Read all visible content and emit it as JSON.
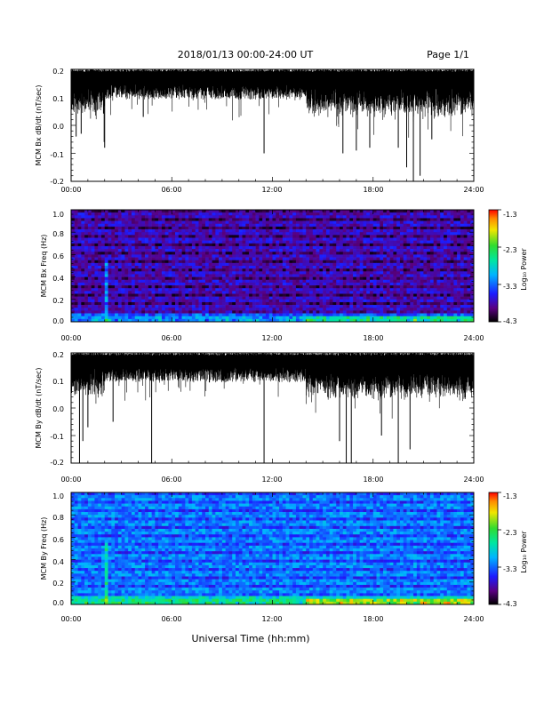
{
  "header": {
    "title": "2018/01/13  00:00-24:00 UT",
    "page": "Page 1/1"
  },
  "footer": {
    "xlabel": "Universal Time (hh:mm)"
  },
  "colorbar": {
    "title": "Log₁₀ Power",
    "tick_labels": [
      "-1.3",
      "-2.3",
      "-3.3",
      "-4.3"
    ],
    "range": [
      -4.3,
      -1.3
    ]
  },
  "chart_data": [
    {
      "type": "line",
      "ylabel": "MCM Bx dB/dt (nT/sec)",
      "x_tick_labels": [
        "00:00",
        "06:00",
        "12:00",
        "18:00",
        "24:00"
      ],
      "y_tick_labels": [
        "0.2",
        "0.1",
        "0.0",
        "-0.1",
        "-0.2"
      ],
      "xlim_hours": [
        0,
        24
      ],
      "ylim": [
        -0.2,
        0.2
      ],
      "series_note": "dense black time series, upper envelope ~0.2, typical troughs 0.1-0.15",
      "spikes": [
        {
          "x": 0.3,
          "y": -0.04
        },
        {
          "x": 0.6,
          "y": -0.03
        },
        {
          "x": 2.0,
          "y": -0.08
        },
        {
          "x": 4.3,
          "y": 0.03
        },
        {
          "x": 11.5,
          "y": -0.1
        },
        {
          "x": 16.2,
          "y": -0.1
        },
        {
          "x": 17.0,
          "y": -0.09
        },
        {
          "x": 17.8,
          "y": -0.08
        },
        {
          "x": 19.5,
          "y": -0.08
        },
        {
          "x": 20.0,
          "y": -0.15
        },
        {
          "x": 20.4,
          "y": -0.2
        },
        {
          "x": 20.8,
          "y": -0.18
        },
        {
          "x": 21.5,
          "y": -0.05
        }
      ]
    },
    {
      "type": "heatmap",
      "ylabel": "MCM Bx Freq (Hz)",
      "x_tick_labels": [
        "00:00",
        "06:00",
        "12:00",
        "18:00",
        "24:00"
      ],
      "y_tick_labels": [
        "1.0",
        "0.8",
        "0.6",
        "0.4",
        "0.2",
        "0.0"
      ],
      "xlim_hours": [
        0,
        24
      ],
      "ylim": [
        0,
        1.0
      ],
      "colorbar_range": [
        -4.3,
        -1.3
      ],
      "description": "background near -3.8 (blue), horizontal bands, stronger power below 0.1 Hz, higher late-day"
    },
    {
      "type": "line",
      "ylabel": "MCM By dB/dt (nT/sec)",
      "x_tick_labels": [
        "00:00",
        "06:00",
        "12:00",
        "18:00",
        "24:00"
      ],
      "y_tick_labels": [
        "0.2",
        "0.1",
        "0.0",
        "-0.1",
        "-0.2"
      ],
      "xlim_hours": [
        0,
        24
      ],
      "ylim": [
        -0.2,
        0.2
      ],
      "series_note": "dense black time series, upper envelope ~0.2, typical troughs 0.1-0.15",
      "spikes": [
        {
          "x": 0.5,
          "y": -0.2
        },
        {
          "x": 0.7,
          "y": -0.12
        },
        {
          "x": 1.0,
          "y": -0.07
        },
        {
          "x": 2.5,
          "y": -0.05
        },
        {
          "x": 4.8,
          "y": -0.2
        },
        {
          "x": 11.5,
          "y": -0.2
        },
        {
          "x": 16.0,
          "y": -0.12
        },
        {
          "x": 16.4,
          "y": -0.2
        },
        {
          "x": 16.7,
          "y": -0.2
        },
        {
          "x": 18.5,
          "y": -0.1
        },
        {
          "x": 19.5,
          "y": -0.2
        },
        {
          "x": 20.2,
          "y": -0.15
        }
      ]
    },
    {
      "type": "heatmap",
      "ylabel": "MCM By Freq (Hz)",
      "x_tick_labels": [
        "00:00",
        "06:00",
        "12:00",
        "18:00",
        "24:00"
      ],
      "y_tick_labels": [
        "1.0",
        "0.8",
        "0.6",
        "0.4",
        "0.2",
        "0.0"
      ],
      "xlim_hours": [
        0,
        24
      ],
      "ylim": [
        0,
        1.0
      ],
      "colorbar_range": [
        -4.3,
        -1.3
      ],
      "description": "background near -3.2 (cyan), horizontal bands, stronger power below 0.05 Hz"
    }
  ]
}
